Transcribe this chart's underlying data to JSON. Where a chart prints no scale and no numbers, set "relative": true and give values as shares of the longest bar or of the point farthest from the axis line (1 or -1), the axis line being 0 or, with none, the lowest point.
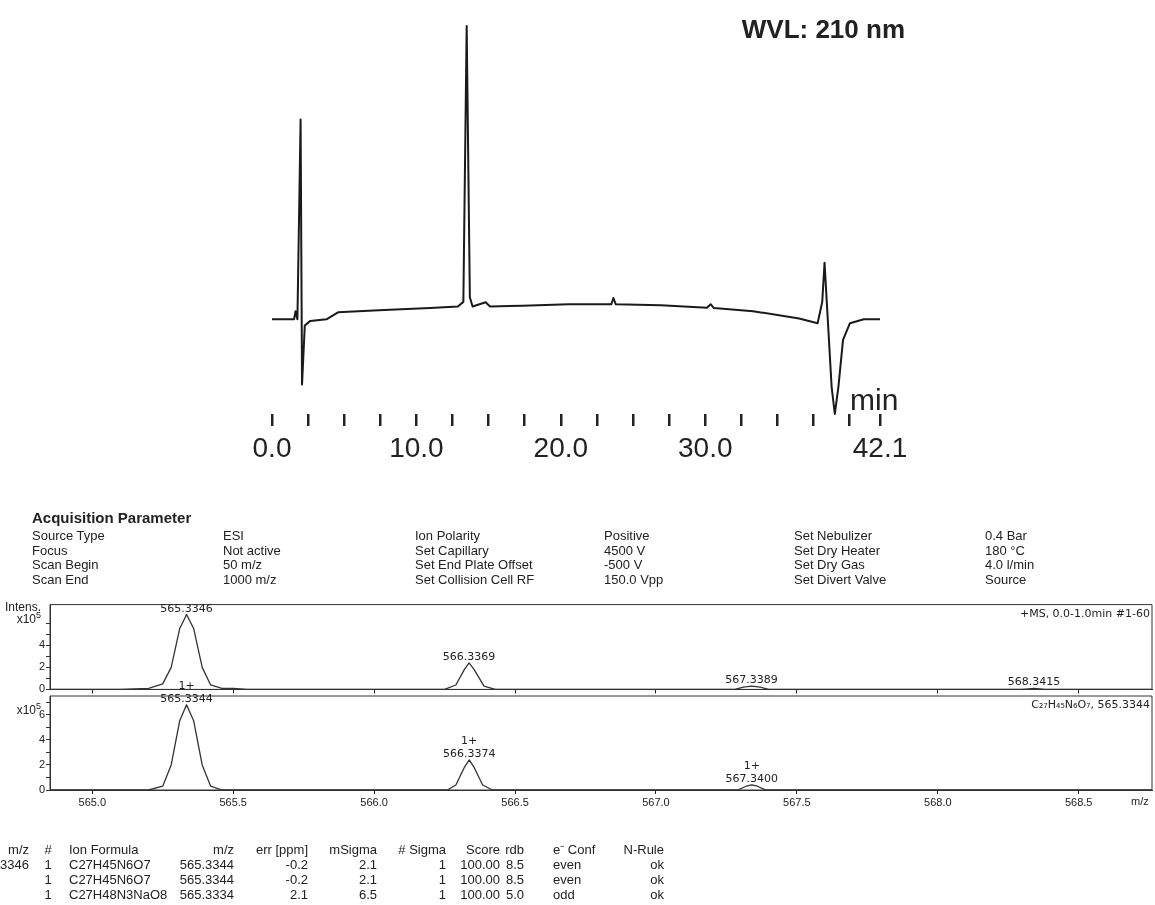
{
  "chart_data": [
    {
      "type": "line",
      "title": "WVL: 210 nm",
      "xlabel": "min",
      "relative": true,
      "x": [
        0,
        1.53,
        1.63,
        1.76,
        1.98,
        2.08,
        2.27,
        2.65,
        3.77,
        4.57,
        7.76,
        10.96,
        12.87,
        13.25,
        13.48,
        13.7,
        13.89,
        14.79,
        15.1,
        17.34,
        20.54,
        23.5,
        23.64,
        23.8,
        26.92,
        30.12,
        30.37,
        30.6,
        33.31,
        36.5,
        37.78,
        38.1,
        38.26,
        38.49,
        38.75,
        38.97,
        39.22,
        39.54,
        40.02,
        40.98,
        42.1
      ],
      "values": [
        0.244,
        0.244,
        0.265,
        0.244,
        0.759,
        0.076,
        0.228,
        0.24,
        0.244,
        0.262,
        0.268,
        0.273,
        0.277,
        0.289,
        1,
        0.301,
        0.277,
        0.288,
        0.277,
        0.279,
        0.283,
        0.283,
        0.299,
        0.283,
        0.28,
        0.274,
        0.283,
        0.273,
        0.265,
        0.246,
        0.234,
        0.289,
        0.39,
        0.24,
        0.07,
        0,
        0.07,
        0.191,
        0.234,
        0.244,
        0.244
      ],
      "color": "#1a1a1a",
      "xlim": [
        0,
        42.1
      ],
      "xticks": [
        {
          "value": 0,
          "label": "0.0"
        },
        {
          "value": 2.5,
          "label": null
        },
        {
          "value": 5,
          "label": null
        },
        {
          "value": 7.5,
          "label": null
        },
        {
          "value": 10,
          "label": "10.0"
        },
        {
          "value": 12.5,
          "label": null
        },
        {
          "value": 15,
          "label": null
        },
        {
          "value": 17.5,
          "label": null
        },
        {
          "value": 20,
          "label": "20.0"
        },
        {
          "value": 22.5,
          "label": null
        },
        {
          "value": 25,
          "label": null
        },
        {
          "value": 27.5,
          "label": null
        },
        {
          "value": 30,
          "label": "30.0"
        },
        {
          "value": 32.5,
          "label": null
        },
        {
          "value": 35,
          "label": null
        },
        {
          "value": 37.5,
          "label": null
        },
        {
          "value": 40,
          "label": null
        },
        {
          "value": 42.1,
          "label": "42.1"
        }
      ]
    },
    {
      "type": "other",
      "title": "Acquisition Parameter",
      "annotations": [
        "Source Type\tESI\tIon Polarity\tPositive\tSet Nebulizer\t0.4 Bar",
        "Focus\tNot active\tSet Capillary\t4500 V\tSet Dry Heater\t180 °C",
        "Scan Begin\t50 m/z\tSet End Plate Offset\t-500 V\tSet Dry Gas\t4.0 l/min",
        "Scan End\t1000 m/z\tSet Collision Cell RF\t150.0 Vpp\tSet Divert Valve\tSource"
      ]
    },
    {
      "type": "line",
      "ylabel": "Intens.\nx10$^{5}$",
      "tick_labels": "y",
      "x": [
        564.85,
        565.1,
        565.2,
        565.25,
        565.28,
        565.31,
        565.3346,
        565.36,
        565.39,
        565.42,
        565.46,
        565.5,
        565.55,
        566.25,
        566.29,
        566.32,
        566.3369,
        566.355,
        566.39,
        566.43,
        567.28,
        567.31,
        567.3389,
        567.37,
        567.4,
        568.3,
        568.3415,
        568.38,
        568.76
      ],
      "values": [
        0,
        0,
        0.1,
        0.5,
        2,
        5.5,
        6.8,
        5.5,
        2,
        0.4,
        0.1,
        0.1,
        0,
        0,
        0.4,
        1.8,
        2.4,
        1.8,
        0.3,
        0,
        0,
        0.2,
        0.3,
        0.2,
        0,
        0,
        0.1,
        0,
        0
      ],
      "color": "#333333",
      "xlim": [
        564.85,
        568.76
      ],
      "ylim": [
        0,
        7.7
      ],
      "xticks": [
        {
          "value": 565,
          "label": null
        },
        {
          "value": 565.5,
          "label": null
        },
        {
          "value": 566,
          "label": null
        },
        {
          "value": 566.5,
          "label": null
        },
        {
          "value": 567,
          "label": null
        },
        {
          "value": 567.5,
          "label": null
        },
        {
          "value": 568,
          "label": null
        },
        {
          "value": 568.5,
          "label": null
        }
      ],
      "yticks": [
        0,
        {
          "value": 1,
          "label": null
        },
        2,
        {
          "value": 3,
          "label": null
        },
        4,
        {
          "value": 5,
          "label": null
        },
        {
          "value": 6,
          "label": null
        }
      ],
      "annotations": [
        {
          "text": "565.3346",
          "x": 565.3346,
          "y": 6.8
        },
        {
          "text": "566.3369",
          "x": 566.3369,
          "y": 2.4
        },
        {
          "text": "567.3389",
          "x": 567.3389,
          "y": 0.3
        },
        {
          "text": "568.3415",
          "x": 568.3415,
          "y": 0.1
        },
        "+MS, 0.0-1.0min #1-60"
      ]
    },
    {
      "type": "line",
      "ylabel": "x10$^{5}$",
      "xlabel": "m/z",
      "x": [
        564.85,
        565.2,
        565.25,
        565.28,
        565.31,
        565.3344,
        565.36,
        565.39,
        565.42,
        565.46,
        566.26,
        566.29,
        566.32,
        566.3374,
        566.355,
        566.385,
        566.42,
        567.29,
        567.32,
        567.34,
        567.36,
        567.39,
        568.76
      ],
      "values": [
        0,
        0,
        0.3,
        2,
        5.5,
        6.8,
        5.5,
        2,
        0.3,
        0,
        0,
        0.4,
        1.8,
        2.4,
        1.8,
        0.4,
        0,
        0,
        0.3,
        0.4,
        0.3,
        0,
        0
      ],
      "color": "#333333",
      "xlim": [
        564.85,
        568.76
      ],
      "ylim": [
        0,
        7.5
      ],
      "xticks": [
        {
          "value": 565,
          "label": "565.0"
        },
        {
          "value": 565.5,
          "label": "565.5"
        },
        {
          "value": 566,
          "label": "566.0"
        },
        {
          "value": 566.5,
          "label": "566.5"
        },
        {
          "value": 567,
          "label": "567.0"
        },
        {
          "value": 567.5,
          "label": "567.5"
        },
        {
          "value": 568,
          "label": "568.0"
        },
        {
          "value": 568.5,
          "label": "568.5"
        }
      ],
      "yticks": [
        0,
        {
          "value": 1,
          "label": null
        },
        2,
        {
          "value": 3,
          "label": null
        },
        4,
        {
          "value": 5,
          "label": null
        },
        6,
        {
          "value": 7,
          "label": null
        }
      ],
      "annotations": [
        {
          "text": "1+\n565.3344",
          "x": 565.3344,
          "y": 6.8
        },
        {
          "text": "1+\n566.3374",
          "x": 566.3374,
          "y": 2.4
        },
        {
          "text": "1+\n567.3400",
          "x": 567.34,
          "y": 0.4
        },
        "C₂₇H₄₅N₆O₇, 565.3344"
      ]
    },
    {
      "type": "other",
      "annotations": [
        "m/z\t#\tIon Formula\tm/z\terr [ppm]\tmSigma\t# Sigma\tScore\trdb\te⁻ Conf\tN-Rule",
        "3346\t1\tC27H45N6O7\t565.3344\t-0.2\t2.1\t1\t100.00\t8.5\teven\tok",
        "\t1\tC27H45N6O7\t565.3344\t-0.2\t2.1\t1\t100.00\t8.5\teven\tok",
        "\t1\tC27H48N3NaO8\t565.3334\t2.1\t6.5\t1\t100.00\t5.0\todd\tok"
      ]
    }
  ]
}
